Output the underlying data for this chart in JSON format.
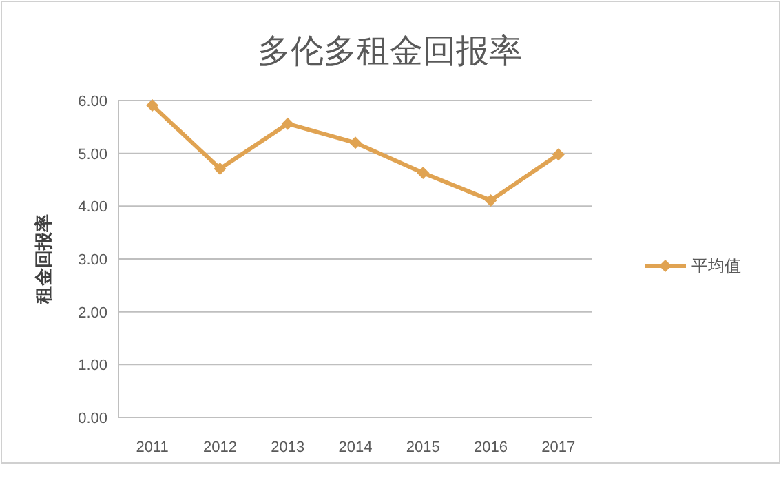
{
  "chart_data": {
    "type": "line",
    "title": "多伦多租金回报率",
    "ylabel": "租金回报率",
    "categories": [
      "2011",
      "2012",
      "2013",
      "2014",
      "2015",
      "2016",
      "2017"
    ],
    "series": [
      {
        "name": "平均值",
        "color": "#e0a352",
        "values": [
          5.91,
          4.71,
          5.56,
          5.2,
          4.63,
          4.11,
          4.98
        ]
      }
    ],
    "ylim": [
      0,
      6
    ],
    "yticks": [
      {
        "value": 0,
        "label": "0.00"
      },
      {
        "value": 1,
        "label": "1.00"
      },
      {
        "value": 2,
        "label": "2.00"
      },
      {
        "value": 3,
        "label": "3.00"
      },
      {
        "value": 4,
        "label": "4.00"
      },
      {
        "value": 5,
        "label": "5.00"
      },
      {
        "value": 6,
        "label": "6.00"
      }
    ],
    "grid": "y",
    "legend": "right",
    "marker": "diamond",
    "line_style": "solid"
  }
}
